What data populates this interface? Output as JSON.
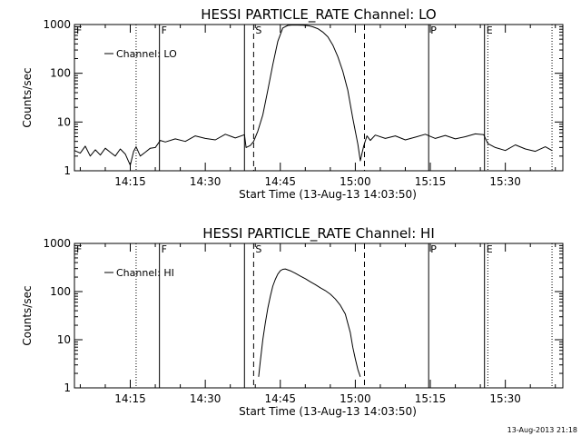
{
  "chart_data": [
    {
      "type": "line",
      "title": "HESSI PARTICLE_RATE Channel: LO",
      "xlabel": "Start Time (13-Aug-13 14:03:50)",
      "ylabel": "Counts/sec",
      "y_scale": "log",
      "ylim": [
        1,
        1000
      ],
      "y_ticks": [
        "1",
        "10",
        "100",
        "1000"
      ],
      "x_range": [
        "14:03:50",
        "15:41:30"
      ],
      "x_ticks": [
        "14:15",
        "14:30",
        "14:45",
        "15:00",
        "15:15",
        "15:30"
      ],
      "legend": {
        "label": "Channel: LO",
        "position": "top-left"
      },
      "markers": [
        {
          "time": "14:03:50",
          "label": "F",
          "style": "none"
        },
        {
          "time": "14:16:10",
          "label": "",
          "style": "dotted"
        },
        {
          "time": "14:20:50",
          "label": "F",
          "style": "solid"
        },
        {
          "time": "14:37:50",
          "label": "",
          "style": "solid"
        },
        {
          "time": "14:39:40",
          "label": "S",
          "style": "dashed"
        },
        {
          "time": "15:01:50",
          "label": "",
          "style": "dashed"
        },
        {
          "time": "15:14:40",
          "label": "P",
          "style": "solid"
        },
        {
          "time": "15:25:50",
          "label": "E",
          "style": "solid"
        },
        {
          "time": "15:26:30",
          "label": "",
          "style": "dotted"
        },
        {
          "time": "15:39:20",
          "label": "",
          "style": "dotted"
        }
      ],
      "series": [
        {
          "name": "Channel: LO",
          "x": [
            "14:03:50",
            "14:05:00",
            "14:06:00",
            "14:07:00",
            "14:08:00",
            "14:09:00",
            "14:10:00",
            "14:11:00",
            "14:12:00",
            "14:13:00",
            "14:14:00",
            "14:15:00",
            "14:15:40",
            "14:16:10",
            "14:17:00",
            "14:18:00",
            "14:19:00",
            "14:20:00",
            "14:21:00",
            "14:22:00",
            "14:24:00",
            "14:26:00",
            "14:28:00",
            "14:30:00",
            "14:32:00",
            "14:34:00",
            "14:36:00",
            "14:37:50",
            "14:38:10",
            "14:39:00",
            "14:39:40",
            "14:40:30",
            "14:41:30",
            "14:42:30",
            "14:43:30",
            "14:44:30",
            "14:45:30",
            "14:46:30",
            "14:47:30",
            "14:48:30",
            "14:49:30",
            "14:50:30",
            "14:51:30",
            "14:52:30",
            "14:53:30",
            "14:54:30",
            "14:55:30",
            "14:56:30",
            "14:57:30",
            "14:58:30",
            "14:59:30",
            "15:00:30",
            "15:01:00",
            "15:01:40",
            "15:02:20",
            "15:03:00",
            "15:04:00",
            "15:06:00",
            "15:08:00",
            "15:10:00",
            "15:12:00",
            "15:14:00",
            "15:16:00",
            "15:18:00",
            "15:20:00",
            "15:22:00",
            "15:24:00",
            "15:25:40",
            "15:26:30",
            "15:28:00",
            "15:30:00",
            "15:32:00",
            "15:34:00",
            "15:36:00",
            "15:38:00",
            "15:39:20"
          ],
          "y": [
            2.6,
            2.3,
            3.2,
            2.0,
            2.7,
            2.1,
            2.9,
            2.4,
            2.0,
            2.8,
            2.2,
            1.3,
            2.5,
            3.1,
            2.0,
            2.4,
            2.9,
            3.0,
            4.2,
            3.9,
            4.5,
            4.0,
            5.2,
            4.6,
            4.3,
            5.6,
            4.7,
            5.5,
            3.0,
            3.3,
            4.0,
            6.5,
            14,
            45,
            150,
            450,
            850,
            960,
            980,
            975,
            970,
            950,
            900,
            820,
            700,
            560,
            380,
            220,
            110,
            45,
            12,
            3.5,
            1.6,
            3.2,
            5.2,
            4.2,
            5.4,
            4.6,
            5.2,
            4.3,
            4.9,
            5.6,
            4.6,
            5.3,
            4.5,
            5.0,
            5.7,
            5.5,
            3.6,
            3.0,
            2.6,
            3.4,
            2.8,
            2.5,
            3.1,
            2.6
          ]
        }
      ]
    },
    {
      "type": "line",
      "title": "HESSI PARTICLE_RATE Channel: HI",
      "xlabel": "Start Time (13-Aug-13 14:03:50)",
      "ylabel": "Counts/sec",
      "y_scale": "log",
      "ylim": [
        1,
        1000
      ],
      "y_ticks": [
        "1",
        "10",
        "100",
        "1000"
      ],
      "x_range": [
        "14:03:50",
        "15:41:30"
      ],
      "x_ticks": [
        "14:15",
        "14:30",
        "14:45",
        "15:00",
        "15:15",
        "15:30"
      ],
      "legend": {
        "label": "Channel: HI",
        "position": "top-left"
      },
      "markers": [
        {
          "time": "14:03:50",
          "label": "F",
          "style": "none"
        },
        {
          "time": "14:16:10",
          "label": "",
          "style": "dotted"
        },
        {
          "time": "14:20:50",
          "label": "F",
          "style": "solid"
        },
        {
          "time": "14:37:50",
          "label": "",
          "style": "solid"
        },
        {
          "time": "14:39:40",
          "label": "S",
          "style": "dashed"
        },
        {
          "time": "15:01:50",
          "label": "",
          "style": "dashed"
        },
        {
          "time": "15:14:40",
          "label": "P",
          "style": "solid"
        },
        {
          "time": "15:25:50",
          "label": "E",
          "style": "solid"
        },
        {
          "time": "15:26:30",
          "label": "",
          "style": "dotted"
        },
        {
          "time": "15:39:20",
          "label": "",
          "style": "dotted"
        }
      ],
      "series": [
        {
          "name": "Channel: HI",
          "x": [
            "14:40:40",
            "14:41:00",
            "14:41:30",
            "14:42:00",
            "14:42:30",
            "14:43:00",
            "14:43:30",
            "14:44:00",
            "14:44:30",
            "14:45:00",
            "14:45:30",
            "14:46:00",
            "14:47:00",
            "14:48:00",
            "14:49:00",
            "14:50:00",
            "14:51:00",
            "14:52:00",
            "14:53:00",
            "14:54:00",
            "14:55:00",
            "14:56:00",
            "14:57:00",
            "14:58:00",
            "14:59:00",
            "14:59:30",
            "15:00:00",
            "15:00:30",
            "15:01:00"
          ],
          "y": [
            1.7,
            3.5,
            10,
            22,
            45,
            80,
            130,
            180,
            230,
            270,
            290,
            295,
            270,
            240,
            210,
            185,
            160,
            140,
            120,
            105,
            88,
            70,
            52,
            34,
            14,
            7,
            4,
            2.4,
            1.7
          ]
        }
      ]
    }
  ],
  "footer_timestamp": "13-Aug-2013 21:18"
}
